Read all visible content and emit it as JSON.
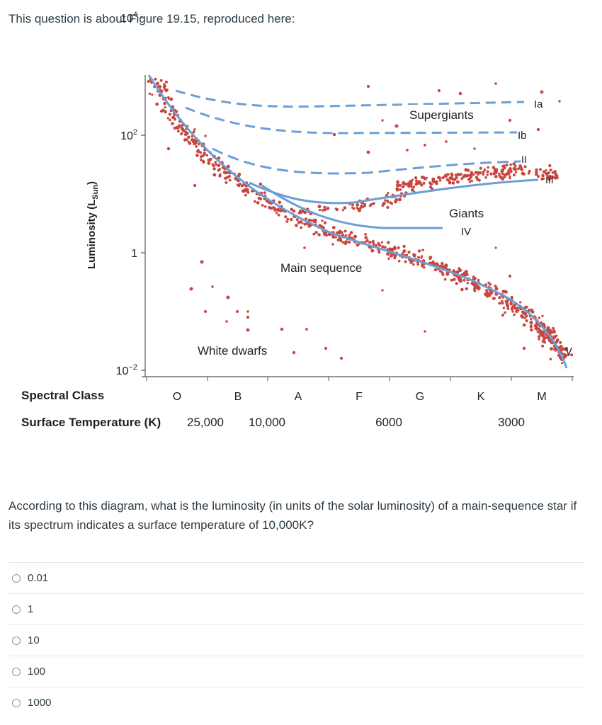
{
  "intro": "This question is about Figure 19.15, reproduced here:",
  "question": "According to this diagram, what is the luminosity (in units of the solar luminosity) of a main-sequence star if its spectrum indicates a surface temperature of 10,000K?",
  "answers": [
    {
      "label": "0.01"
    },
    {
      "label": "1"
    },
    {
      "label": "10"
    },
    {
      "label": "100"
    },
    {
      "label": "1000"
    }
  ],
  "chart_data": {
    "type": "scatter",
    "title": "",
    "ylabel_main": "Luminosity (L",
    "ylabel_sub": "Sun",
    "ylabel_close": ")",
    "y_scale": "log",
    "y_ticks": [
      {
        "value": 10000,
        "base": "10",
        "exp": "4"
      },
      {
        "value": 100,
        "base": "10",
        "exp": "2"
      },
      {
        "value": 1,
        "base": "1",
        "exp": ""
      },
      {
        "value": 0.01,
        "base": "10",
        "exp": "−2"
      }
    ],
    "x_row1_label": "Spectral Class",
    "x_row2_label": "Surface Temperature (K)",
    "spectral_classes": [
      "O",
      "B",
      "A",
      "F",
      "G",
      "K",
      "M"
    ],
    "temperature_ticks": [
      "25,000",
      "10,000",
      "6000",
      "3000"
    ],
    "regions": [
      {
        "name": "Supergiants"
      },
      {
        "name": "Giants"
      },
      {
        "name": "Main sequence"
      },
      {
        "name": "White dwarfs"
      }
    ],
    "luminosity_classes": [
      "Ia",
      "Ib",
      "II",
      "III",
      "IV",
      "V"
    ],
    "point_color": "#c8463f",
    "curve_color": "#6b9fd8"
  }
}
